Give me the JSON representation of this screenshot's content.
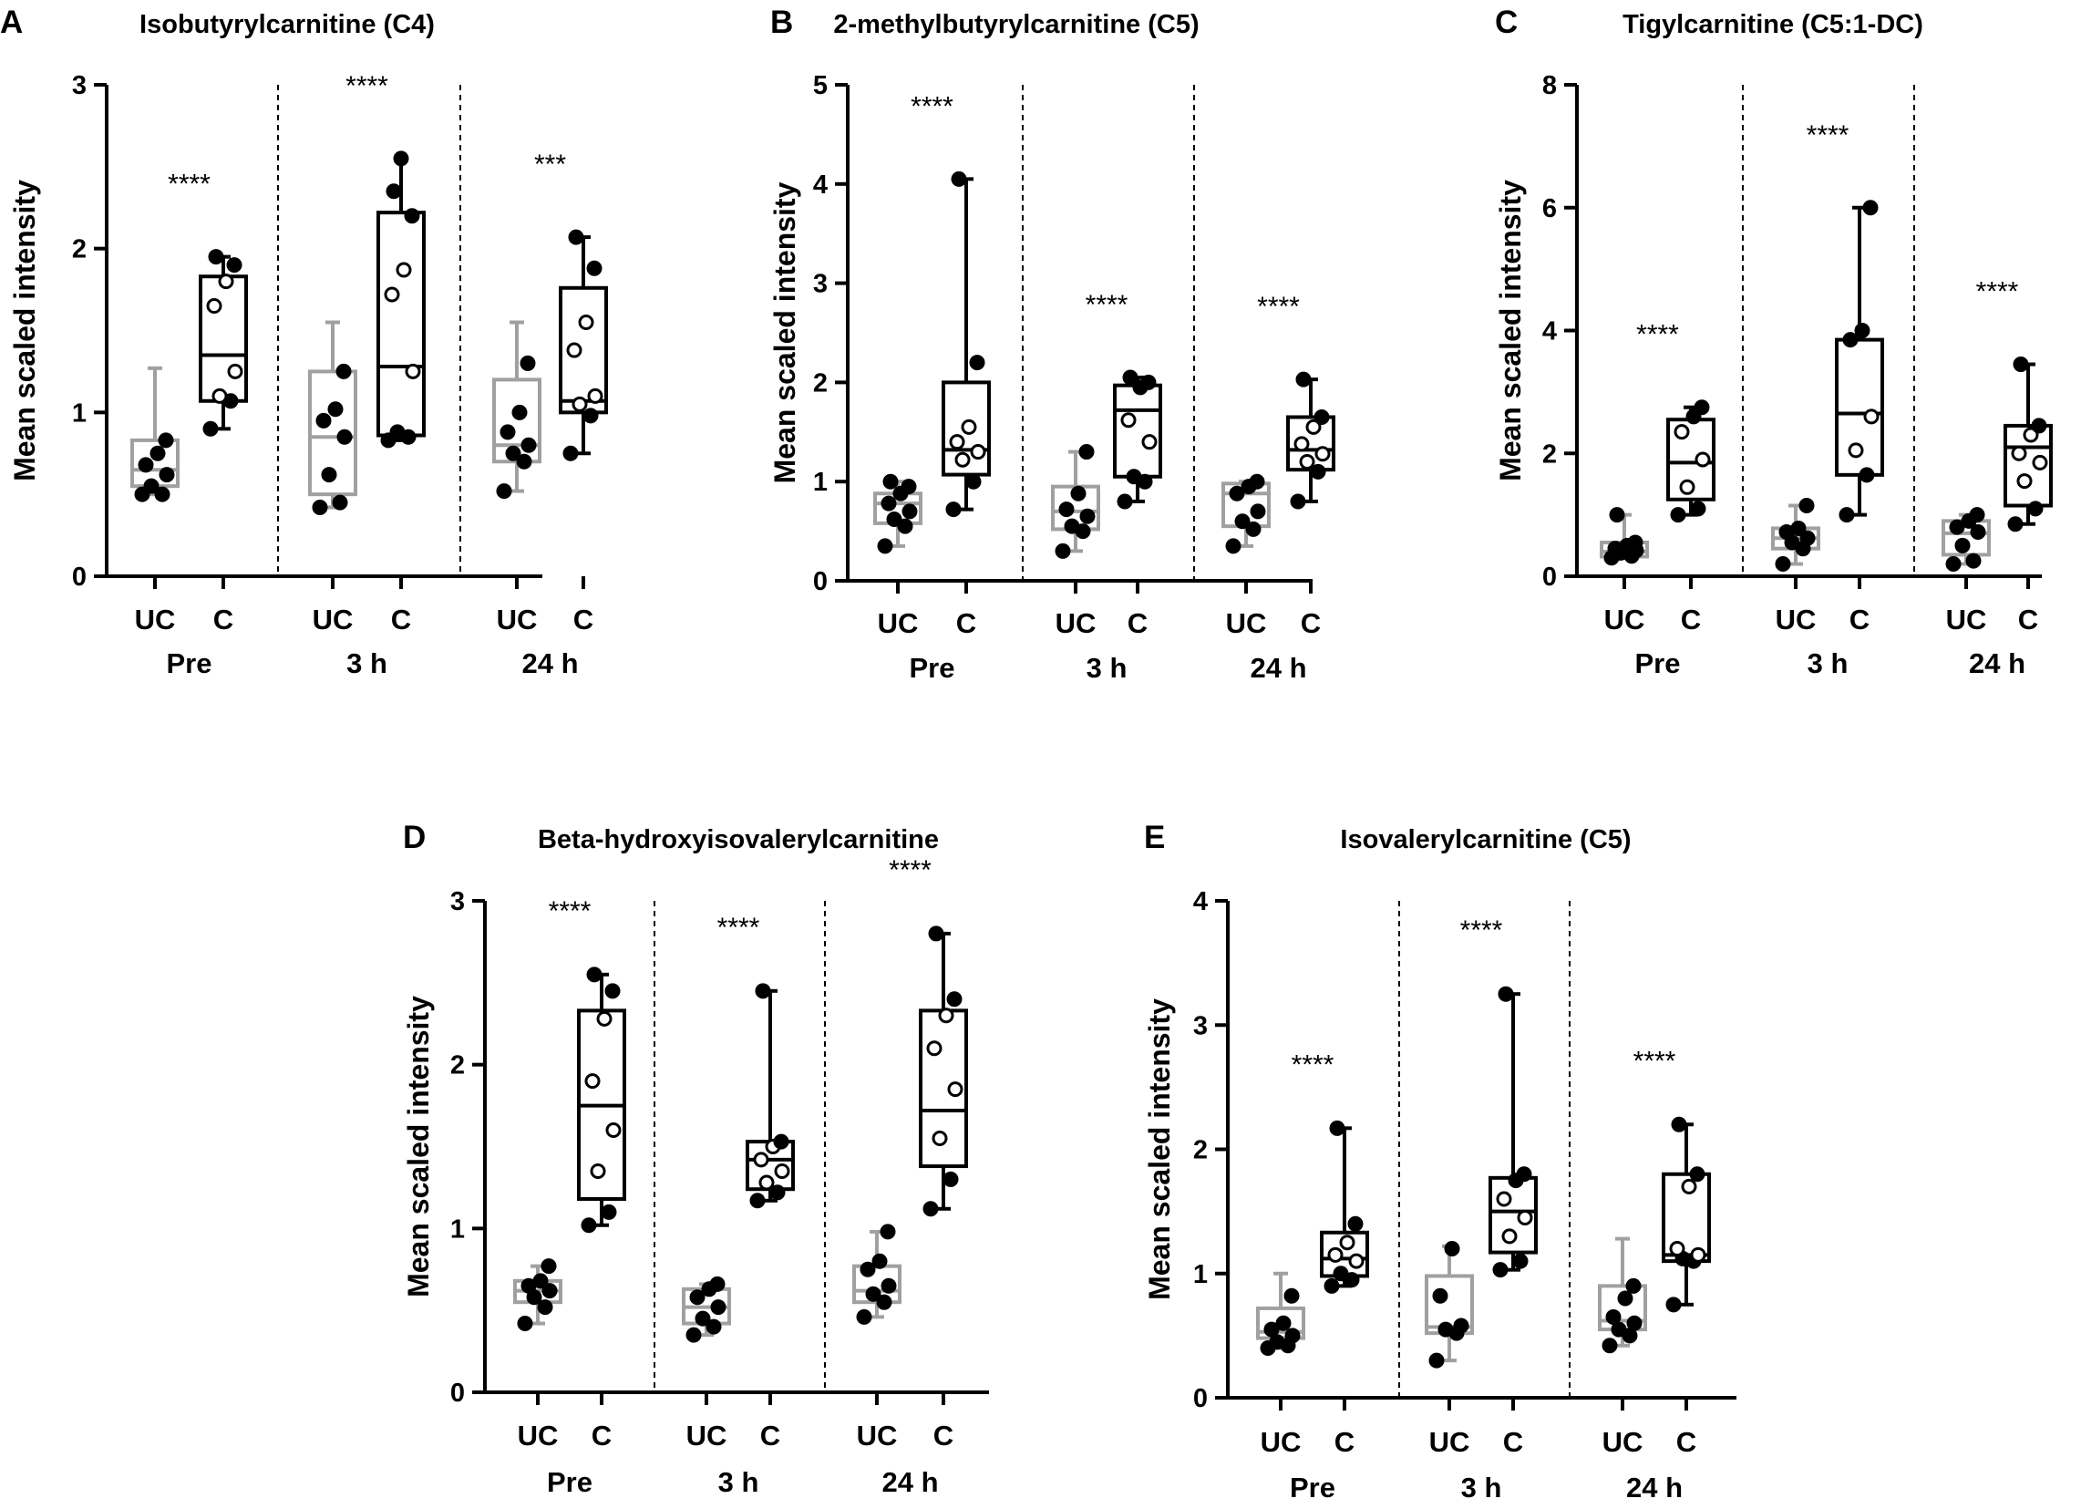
{
  "chart_data": [
    {
      "type": "box",
      "panel": "A",
      "title": "Isobutyrylcarnitine (C4)",
      "ylabel": "Mean scaled intensity",
      "ylim": [
        0,
        3
      ],
      "yticks": [
        "0",
        "1",
        "2",
        "3"
      ],
      "categories": [
        "UC",
        "C"
      ],
      "groups": [
        {
          "name": "Pre",
          "significance": "****",
          "series": [
            {
              "category": "UC",
              "min": 0.5,
              "q1": 0.55,
              "median": 0.65,
              "q3": 0.83,
              "max": 1.27,
              "points": [
                0.5,
                0.5,
                0.55,
                0.62,
                0.68,
                0.75,
                0.83
              ]
            },
            {
              "category": "C",
              "min": 0.9,
              "q1": 1.07,
              "median": 1.35,
              "q3": 1.83,
              "max": 1.95,
              "points": [
                0.9,
                1.07,
                1.1,
                1.25,
                1.65,
                1.8,
                1.9,
                1.95
              ]
            }
          ]
        },
        {
          "name": "3 h",
          "significance": "****",
          "series": [
            {
              "category": "UC",
              "min": 0.42,
              "q1": 0.5,
              "median": 0.85,
              "q3": 1.25,
              "max": 1.55,
              "points": [
                0.42,
                0.45,
                0.62,
                0.85,
                0.95,
                1.02,
                1.25
              ]
            },
            {
              "category": "C",
              "min": 0.83,
              "q1": 0.86,
              "median": 1.28,
              "q3": 2.22,
              "max": 2.55,
              "points": [
                0.83,
                0.85,
                0.88,
                1.25,
                1.72,
                1.87,
                2.2,
                2.35,
                2.55
              ]
            }
          ]
        },
        {
          "name": "24 h",
          "significance": "***",
          "series": [
            {
              "category": "UC",
              "min": 0.52,
              "q1": 0.7,
              "median": 0.8,
              "q3": 1.2,
              "max": 1.55,
              "points": [
                0.52,
                0.7,
                0.75,
                0.8,
                0.88,
                1.0,
                1.3
              ]
            },
            {
              "category": "C",
              "min": 0.75,
              "q1": 1.0,
              "median": 1.07,
              "q3": 1.76,
              "max": 2.07,
              "points": [
                0.75,
                0.98,
                1.05,
                1.1,
                1.38,
                1.55,
                1.88,
                2.07
              ]
            }
          ]
        }
      ]
    },
    {
      "type": "box",
      "panel": "B",
      "title": "2-methylbutyrylcarnitine (C5)",
      "ylabel": "Mean scaled intensity",
      "ylim": [
        0,
        5
      ],
      "yticks": [
        "0",
        "1",
        "2",
        "3",
        "4",
        "5"
      ],
      "categories": [
        "UC",
        "C"
      ],
      "groups": [
        {
          "name": "Pre",
          "significance": "****",
          "series": [
            {
              "category": "UC",
              "min": 0.35,
              "q1": 0.58,
              "median": 0.78,
              "q3": 0.88,
              "max": 1.0,
              "points": [
                0.35,
                0.55,
                0.62,
                0.7,
                0.78,
                0.88,
                0.95,
                1.0
              ]
            },
            {
              "category": "C",
              "min": 0.72,
              "q1": 1.07,
              "median": 1.32,
              "q3": 2.0,
              "max": 4.05,
              "points": [
                0.72,
                1.0,
                1.22,
                1.3,
                1.4,
                1.55,
                2.2,
                4.05
              ]
            }
          ]
        },
        {
          "name": "3 h",
          "significance": "****",
          "series": [
            {
              "category": "UC",
              "min": 0.3,
              "q1": 0.52,
              "median": 0.7,
              "q3": 0.95,
              "max": 1.3,
              "points": [
                0.3,
                0.5,
                0.55,
                0.65,
                0.72,
                0.88,
                1.3
              ]
            },
            {
              "category": "C",
              "min": 0.8,
              "q1": 1.05,
              "median": 1.72,
              "q3": 1.97,
              "max": 2.05,
              "points": [
                0.8,
                1.0,
                1.05,
                1.4,
                1.62,
                1.95,
                2.0,
                2.05
              ]
            }
          ]
        },
        {
          "name": "24 h",
          "significance": "****",
          "series": [
            {
              "category": "UC",
              "min": 0.35,
              "q1": 0.55,
              "median": 0.88,
              "q3": 0.98,
              "max": 1.0,
              "points": [
                0.35,
                0.52,
                0.6,
                0.7,
                0.88,
                0.95,
                1.0
              ]
            },
            {
              "category": "C",
              "min": 0.8,
              "q1": 1.12,
              "median": 1.32,
              "q3": 1.65,
              "max": 2.03,
              "points": [
                0.8,
                1.1,
                1.2,
                1.28,
                1.38,
                1.55,
                1.65,
                2.03
              ]
            }
          ]
        }
      ]
    },
    {
      "type": "box",
      "panel": "C",
      "title": "Tigylcarnitine (C5:1-DC)",
      "ylabel": "Mean scaled intensity",
      "ylim": [
        0,
        8
      ],
      "yticks": [
        "0",
        "2",
        "4",
        "6",
        "8"
      ],
      "categories": [
        "UC",
        "C"
      ],
      "groups": [
        {
          "name": "Pre",
          "significance": "****",
          "series": [
            {
              "category": "UC",
              "min": 0.3,
              "q1": 0.32,
              "median": 0.4,
              "q3": 0.55,
              "max": 1.0,
              "points": [
                0.3,
                0.33,
                0.38,
                0.42,
                0.45,
                0.5,
                0.55,
                1.0
              ]
            },
            {
              "category": "C",
              "min": 1.0,
              "q1": 1.25,
              "median": 1.85,
              "q3": 2.55,
              "max": 2.75,
              "points": [
                1.0,
                1.1,
                1.45,
                1.9,
                2.35,
                2.6,
                2.75
              ]
            }
          ]
        },
        {
          "name": "3 h",
          "significance": "****",
          "series": [
            {
              "category": "UC",
              "min": 0.2,
              "q1": 0.45,
              "median": 0.62,
              "q3": 0.78,
              "max": 1.15,
              "points": [
                0.2,
                0.45,
                0.55,
                0.62,
                0.72,
                0.78,
                1.15
              ]
            },
            {
              "category": "C",
              "min": 1.0,
              "q1": 1.65,
              "median": 2.65,
              "q3": 3.85,
              "max": 6.0,
              "points": [
                1.0,
                1.65,
                2.05,
                2.6,
                3.85,
                4.0,
                6.0
              ]
            }
          ]
        },
        {
          "name": "24 h",
          "significance": "****",
          "series": [
            {
              "category": "UC",
              "min": 0.2,
              "q1": 0.35,
              "median": 0.7,
              "q3": 0.9,
              "max": 1.0,
              "points": [
                0.2,
                0.25,
                0.5,
                0.72,
                0.8,
                0.9,
                1.0
              ]
            },
            {
              "category": "C",
              "min": 0.85,
              "q1": 1.15,
              "median": 2.1,
              "q3": 2.45,
              "max": 3.45,
              "points": [
                0.85,
                1.1,
                1.55,
                1.85,
                2.0,
                2.3,
                2.45,
                3.45
              ]
            }
          ]
        }
      ]
    },
    {
      "type": "box",
      "panel": "D",
      "title": "Beta-hydroxyisovalerylcarnitine",
      "ylabel": "Mean scaled intensity",
      "ylim": [
        0,
        3
      ],
      "yticks": [
        "0",
        "1",
        "2",
        "3"
      ],
      "categories": [
        "UC",
        "C"
      ],
      "groups": [
        {
          "name": "Pre",
          "significance": "****",
          "series": [
            {
              "category": "UC",
              "min": 0.42,
              "q1": 0.55,
              "median": 0.62,
              "q3": 0.68,
              "max": 0.77,
              "points": [
                0.42,
                0.52,
                0.58,
                0.62,
                0.65,
                0.68,
                0.77
              ]
            },
            {
              "category": "C",
              "min": 1.02,
              "q1": 1.18,
              "median": 1.75,
              "q3": 2.33,
              "max": 2.55,
              "points": [
                1.02,
                1.1,
                1.35,
                1.6,
                1.9,
                2.28,
                2.45,
                2.55
              ]
            }
          ]
        },
        {
          "name": "3 h",
          "significance": "****",
          "series": [
            {
              "category": "UC",
              "min": 0.35,
              "q1": 0.42,
              "median": 0.52,
              "q3": 0.63,
              "max": 0.66,
              "points": [
                0.35,
                0.4,
                0.45,
                0.52,
                0.58,
                0.63,
                0.66
              ]
            },
            {
              "category": "C",
              "min": 1.17,
              "q1": 1.24,
              "median": 1.42,
              "q3": 1.53,
              "max": 2.45,
              "points": [
                1.17,
                1.22,
                1.28,
                1.35,
                1.42,
                1.5,
                1.53,
                2.45
              ]
            }
          ]
        },
        {
          "name": "24 h",
          "significance": "****",
          "series": [
            {
              "category": "UC",
              "min": 0.46,
              "q1": 0.55,
              "median": 0.62,
              "q3": 0.77,
              "max": 0.98,
              "points": [
                0.46,
                0.55,
                0.6,
                0.65,
                0.75,
                0.8,
                0.98
              ]
            },
            {
              "category": "C",
              "min": 1.12,
              "q1": 1.38,
              "median": 1.72,
              "q3": 2.33,
              "max": 2.8,
              "points": [
                1.12,
                1.3,
                1.55,
                1.85,
                2.1,
                2.3,
                2.4,
                2.8
              ]
            }
          ]
        }
      ]
    },
    {
      "type": "box",
      "panel": "E",
      "title": "Isovalerylcarnitine (C5)",
      "ylabel": "Mean scaled intensity",
      "ylim": [
        0,
        4
      ],
      "yticks": [
        "0",
        "1",
        "2",
        "3",
        "4"
      ],
      "categories": [
        "UC",
        "C"
      ],
      "groups": [
        {
          "name": "Pre",
          "significance": "****",
          "series": [
            {
              "category": "UC",
              "min": 0.4,
              "q1": 0.48,
              "median": 0.53,
              "q3": 0.72,
              "max": 1.0,
              "points": [
                0.4,
                0.42,
                0.45,
                0.5,
                0.55,
                0.6,
                0.82
              ]
            },
            {
              "category": "C",
              "min": 0.9,
              "q1": 0.98,
              "median": 1.12,
              "q3": 1.33,
              "max": 2.17,
              "points": [
                0.9,
                0.95,
                1.0,
                1.1,
                1.15,
                1.25,
                1.4,
                2.17
              ]
            }
          ]
        },
        {
          "name": "3 h",
          "significance": "****",
          "series": [
            {
              "category": "UC",
              "min": 0.3,
              "q1": 0.52,
              "median": 0.57,
              "q3": 0.98,
              "max": 1.22,
              "points": [
                0.3,
                0.52,
                0.55,
                0.58,
                0.82,
                1.2
              ]
            },
            {
              "category": "C",
              "min": 1.03,
              "q1": 1.17,
              "median": 1.5,
              "q3": 1.77,
              "max": 3.25,
              "points": [
                1.03,
                1.1,
                1.3,
                1.45,
                1.6,
                1.75,
                1.8,
                3.25
              ]
            }
          ]
        },
        {
          "name": "24 h",
          "significance": "****",
          "series": [
            {
              "category": "UC",
              "min": 0.42,
              "q1": 0.55,
              "median": 0.62,
              "q3": 0.9,
              "max": 1.28,
              "points": [
                0.42,
                0.5,
                0.55,
                0.6,
                0.65,
                0.8,
                0.9
              ]
            },
            {
              "category": "C",
              "min": 0.75,
              "q1": 1.1,
              "median": 1.15,
              "q3": 1.8,
              "max": 2.2,
              "points": [
                0.75,
                1.1,
                1.12,
                1.15,
                1.2,
                1.7,
                1.8,
                2.2
              ]
            }
          ]
        }
      ]
    }
  ],
  "colors": {
    "uc_box": "#a0a0a0",
    "c_box": "#000000",
    "axis": "#000000",
    "point_fill": "#000000",
    "point_open_fill": "#ffffff"
  }
}
